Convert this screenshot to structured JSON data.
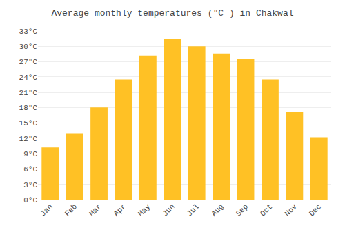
{
  "chart_data": {
    "type": "bar",
    "title": "Average monthly temperatures (°C ) in Chakwāl",
    "categories": [
      "Jan",
      "Feb",
      "Mar",
      "Apr",
      "May",
      "Jun",
      "Jul",
      "Aug",
      "Sep",
      "Oct",
      "Nov",
      "Dec"
    ],
    "values": [
      10.2,
      13.0,
      18.0,
      23.5,
      28.2,
      31.5,
      30.0,
      28.6,
      27.5,
      23.5,
      17.1,
      12.2
    ],
    "color": "#FFC125",
    "ylim": [
      0,
      33
    ],
    "yticks": [
      {
        "value": 0,
        "label": "0°C"
      },
      {
        "value": 3,
        "label": "3°C"
      },
      {
        "value": 6,
        "label": "6°C"
      },
      {
        "value": 9,
        "label": "9°C"
      },
      {
        "value": 12,
        "label": "12°C"
      },
      {
        "value": 15,
        "label": "15°C"
      },
      {
        "value": 18,
        "label": "18°C"
      },
      {
        "value": 21,
        "label": "21°C"
      },
      {
        "value": 24,
        "label": "24°C"
      },
      {
        "value": 27,
        "label": "27°C"
      },
      {
        "value": 30,
        "label": "30°C"
      },
      {
        "value": 33,
        "label": "33°C"
      }
    ],
    "grid": true
  }
}
